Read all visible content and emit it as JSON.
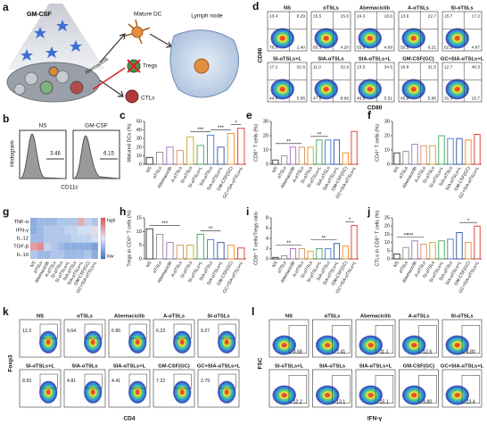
{
  "schematic": {
    "letter": "a",
    "gm_csf": "GM-CSF",
    "mature_dc": "Mature DC",
    "lymph_node": "Lymph node",
    "abemaciclib": "Abemaciclib",
    "tregs": "Tregs",
    "ctls": "CTLs"
  },
  "histograms": {
    "letter": "b",
    "y_label": "Histogram",
    "x_label": "CD11c",
    "plots": [
      {
        "title": "NS",
        "gate": "3.46"
      },
      {
        "title": "GM-CSF",
        "gate": "6.15"
      }
    ]
  },
  "flow_d": {
    "letter": "d",
    "y_label": "CD86",
    "x_label": "CD80",
    "plots": [
      {
        "title": "NS",
        "quadrants": [
          "13.4",
          "8.29",
          "76.0",
          "2.40"
        ]
      },
      {
        "title": "αTSLs",
        "quadrants": [
          "15.5",
          "15.0",
          "65.3",
          "4.20"
        ]
      },
      {
        "title": "Abemaciclib",
        "quadrants": [
          "24.3",
          "18.0",
          "53.6",
          "4.09"
        ]
      },
      {
        "title": "A-αTSLs",
        "quadrants": [
          "13.6",
          "22.7",
          "55.5",
          "8.21"
        ]
      },
      {
        "title": "SI-αTSLs",
        "quadrants": [
          "15.7",
          "17.2",
          "62.2",
          "4.87"
        ]
      },
      {
        "title": "SI-αTSLs+L",
        "quadrants": [
          "17.1",
          "32.6",
          "44.4",
          "5.85"
        ]
      },
      {
        "title": "SIA-αTSLs",
        "quadrants": [
          "11.0",
          "32.9",
          "47.5",
          "8.66"
        ]
      },
      {
        "title": "SIA-αTSLs+L",
        "quadrants": [
          "13.5",
          "34.5",
          "46.5",
          "5.51"
        ]
      },
      {
        "title": "GM-CSF(GC)",
        "quadrants": [
          "16.8",
          "31.5",
          "45.9",
          "5.86"
        ]
      },
      {
        "title": "GC+SIA-αTSLs+L",
        "quadrants": [
          "12.7",
          "40.3",
          "31.3",
          "15.7"
        ]
      }
    ]
  },
  "flow_k": {
    "letter": "k",
    "y_label": "Foxp3",
    "x_label": "CD4",
    "plots": [
      {
        "title": "NS",
        "gate": "12.3"
      },
      {
        "title": "αTSLs",
        "gate": "9.64"
      },
      {
        "title": "Abemaciclib",
        "gate": "6.85"
      },
      {
        "title": "A-αTSLs",
        "gate": "6.23"
      },
      {
        "title": "SI-αTSLs",
        "gate": "9.27"
      },
      {
        "title": "SI-αTSLs+L",
        "gate": "8.93"
      },
      {
        "title": "SIA-αTSLs",
        "gate": "4.81"
      },
      {
        "title": "SIA-αTSLs+L",
        "gate": "4.41"
      },
      {
        "title": "GM-CSF(GC)",
        "gate": "7.22"
      },
      {
        "title": "GC+SIA-αTSLs+L",
        "gate": "2.79"
      }
    ]
  },
  "flow_l": {
    "letter": "l",
    "y_label": "FSC",
    "x_label": "IFN-γ",
    "plots": [
      {
        "title": "NS",
        "gate": "3.58"
      },
      {
        "title": "αTSLs",
        "gate": "7.41"
      },
      {
        "title": "Abemaciclib",
        "gate": "11.1"
      },
      {
        "title": "A-αTSLs",
        "gate": "12.6"
      },
      {
        "title": "SI-αTSLs",
        "gate": "8.80"
      },
      {
        "title": "SI-αTSLs+L",
        "gate": "12.2"
      },
      {
        "title": "SIA-αTSLs",
        "gate": "13.1"
      },
      {
        "title": "SIA-αTSLs+L",
        "gate": "15.1"
      },
      {
        "title": "GM-CSF(GC)",
        "gate": "9.80"
      },
      {
        "title": "GC+SIA-αTSLs+L",
        "gate": "23.4"
      }
    ]
  },
  "chart_data": [
    {
      "type": "bar",
      "letter": "c",
      "y_label": "Matured DCs (%)",
      "categories": [
        "NS",
        "αTSLs",
        "Abemaciclib",
        "A-αTSLs",
        "SI-αTSLs",
        "SI-αTSLs+L",
        "SIA-αTSLs",
        "SIA-αTSLs+L",
        "GM-CSF(GC)",
        "GC+SIA-αTSLs+L"
      ],
      "values": [
        8,
        14,
        20,
        16,
        32,
        22,
        34,
        20,
        36,
        42
      ],
      "colors": [
        "#333333",
        "#8c8c8c",
        "#9b6fc1",
        "#d98c5f",
        "#c9a227",
        "#3aa655",
        "#4a78c8",
        "#2b4fa0",
        "#f08a24",
        "#e0312b"
      ],
      "ylim": [
        0,
        50
      ],
      "yticks": [
        0,
        10,
        20,
        30,
        40,
        50
      ],
      "annotations": [
        {
          "label": "***",
          "between": [
            "SI-αTSLs",
            "SIA-αTSLs"
          ]
        },
        {
          "label": "***",
          "between": [
            "SIA-αTSLs",
            "GM-CSF(GC)"
          ]
        },
        {
          "label": "*",
          "between": [
            "GM-CSF(GC)",
            "GC+SIA-αTSLs+L"
          ]
        }
      ]
    },
    {
      "type": "bar",
      "letter": "e",
      "y_label": "CD8⁺ T cells (%)",
      "categories": [
        "NS",
        "αTSLs",
        "Abemaciclib",
        "A-αTSLs",
        "SI-αTSLs",
        "SI-αTSLs+L",
        "SIA-αTSLs",
        "SIA-αTSLs+L",
        "GM-CSF(GC)",
        "GC+SIA-αTSLs+L"
      ],
      "values": [
        3,
        6,
        12,
        12,
        12,
        17,
        17,
        17,
        8,
        23
      ],
      "colors": [
        "#333333",
        "#8c8c8c",
        "#9b6fc1",
        "#d98c5f",
        "#c9a227",
        "#3aa655",
        "#4a78c8",
        "#2b4fa0",
        "#f08a24",
        "#e0312b"
      ],
      "ylim": [
        0,
        30
      ],
      "yticks": [
        0,
        10,
        20,
        30
      ],
      "annotations": [
        {
          "label": "**",
          "between": [
            "NS",
            "A-αTSLs"
          ]
        },
        {
          "label": "**",
          "between": [
            "SI-αTSLs",
            "SIA-αTSLs"
          ]
        }
      ]
    },
    {
      "type": "bar",
      "letter": "f",
      "y_label": "CD4⁺ T cells (%)",
      "categories": [
        "NS",
        "αTSLs",
        "Abemaciclib",
        "A-αTSLs",
        "SI-αTSLs",
        "SI-αTSLs+L",
        "SIA-αTSLs",
        "SIA-αTSLs+L",
        "GM-CSF(GC)",
        "GC+SIA-αTSLs+L"
      ],
      "values": [
        8,
        9,
        14,
        13,
        13,
        20,
        18,
        18,
        17,
        21
      ],
      "colors": [
        "#333333",
        "#8c8c8c",
        "#9b6fc1",
        "#d98c5f",
        "#c9a227",
        "#3aa655",
        "#4a78c8",
        "#2b4fa0",
        "#f08a24",
        "#e0312b"
      ],
      "ylim": [
        0,
        30
      ],
      "yticks": [
        0,
        10,
        20,
        30
      ],
      "annotations": []
    },
    {
      "type": "heatmap",
      "letter": "g",
      "rows": [
        "TNF-α",
        "IFN-γ",
        "IL-12",
        "TGF-β",
        "IL-10"
      ],
      "categories": [
        "NS",
        "αTSLs",
        "Abemaciclib",
        "A-αTSLs",
        "SI-αTSLs",
        "SI-αTSLs+L",
        "SIA-αTSLs",
        "SIA-αTSLs+L",
        "GM-CSF(GC)",
        "GC+SIA-αTSLs+L"
      ],
      "values": [
        [
          -0.5,
          -0.4,
          -0.4,
          -0.4,
          -0.3,
          -0.3,
          -0.3,
          0.4,
          -0.2,
          -0.3
        ],
        [
          -0.5,
          -0.4,
          -0.3,
          -0.3,
          -0.3,
          -0.2,
          -0.2,
          -0.1,
          -0.1,
          0.1
        ],
        [
          -0.4,
          -0.4,
          -0.3,
          -0.3,
          -0.3,
          -0.3,
          -0.2,
          -0.2,
          -0.2,
          -0.1
        ],
        [
          0.5,
          0.6,
          -0.2,
          -0.3,
          -0.4,
          -0.5,
          -0.5,
          -0.5,
          -0.5,
          -0.6
        ],
        [
          -0.3,
          -0.4,
          -0.4,
          -0.3,
          -0.3,
          -0.4,
          -0.4,
          -0.4,
          -0.3,
          -0.5
        ]
      ],
      "vlim": [
        -1,
        1
      ],
      "scale_high": "high",
      "scale_low": "low"
    },
    {
      "type": "bar",
      "letter": "h",
      "y_label": "Tregs in CD4⁺ T cells (%)",
      "categories": [
        "NS",
        "αTSLs",
        "Abemaciclib",
        "A-αTSLs",
        "SI-αTSLs",
        "SI-αTSLs+L",
        "SIA-αTSLs",
        "SIA-αTSLs+L",
        "GM-CSF(GC)",
        "GC+SIA-αTSLs+L"
      ],
      "values": [
        11,
        9,
        6,
        5,
        5,
        9,
        7,
        6,
        5,
        4
      ],
      "colors": [
        "#333333",
        "#8c8c8c",
        "#9b6fc1",
        "#d98c5f",
        "#c9a227",
        "#3aa655",
        "#4a78c8",
        "#2b4fa0",
        "#f08a24",
        "#e0312b"
      ],
      "ylim": [
        0,
        15
      ],
      "yticks": [
        0,
        5,
        10,
        15
      ],
      "annotations": [
        {
          "label": "***",
          "between": [
            "NS",
            "A-αTSLs"
          ]
        },
        {
          "label": "**",
          "between": [
            "SI-αTSLs+L",
            "SIA-αTSLs+L"
          ]
        }
      ]
    },
    {
      "type": "bar",
      "letter": "i",
      "y_label": "CD8⁺ T cells/Tregs ratio",
      "categories": [
        "NS",
        "αTSLs",
        "Abemaciclib",
        "A-αTSLs",
        "SI-αTSLs",
        "SI-αTSLs+L",
        "SIA-αTSLs",
        "SIA-αTSLs+L",
        "GM-CSF(GC)",
        "GC+SIA-αTSLs+L"
      ],
      "values": [
        0.3,
        0.6,
        2,
        2,
        1.5,
        2,
        2,
        3,
        2.5,
        6.5
      ],
      "colors": [
        "#333333",
        "#8c8c8c",
        "#9b6fc1",
        "#d98c5f",
        "#c9a227",
        "#3aa655",
        "#4a78c8",
        "#2b4fa0",
        "#f08a24",
        "#e0312b"
      ],
      "ylim": [
        0,
        8
      ],
      "yticks": [
        0,
        2,
        4,
        6,
        8
      ],
      "annotations": [
        {
          "label": "**",
          "between": [
            "NS",
            "A-αTSLs"
          ]
        },
        {
          "label": "**",
          "between": [
            "SI-αTSLs",
            "SIA-αTSLs+L"
          ]
        },
        {
          "label": "*",
          "between": [
            "GM-CSF(GC)",
            "GC+SIA-αTSLs+L"
          ]
        }
      ]
    },
    {
      "type": "bar",
      "letter": "j",
      "y_label": "CTLs in CD8⁺ T cells (%)",
      "categories": [
        "NS",
        "αTSLs",
        "Abemaciclib",
        "A-αTSLs",
        "SI-αTSLs",
        "SI-αTSLs+L",
        "SIA-αTSLs",
        "SIA-αTSLs+L",
        "GM-CSF(GC)",
        "GC+SIA-αTSLs+L"
      ],
      "values": [
        3,
        7,
        11,
        9,
        10,
        11,
        12,
        16,
        10,
        20
      ],
      "colors": [
        "#333333",
        "#8c8c8c",
        "#9b6fc1",
        "#d98c5f",
        "#c9a227",
        "#3aa655",
        "#4a78c8",
        "#2b4fa0",
        "#f08a24",
        "#e0312b"
      ],
      "ylim": [
        0,
        25
      ],
      "yticks": [
        0,
        5,
        10,
        15,
        20,
        25
      ],
      "annotations": [
        {
          "label": "**",
          "between": [
            "NS",
            "Abemaciclib"
          ]
        },
        {
          "label": "***",
          "between": [
            "NS",
            "A-αTSLs"
          ]
        },
        {
          "label": "*",
          "between": [
            "SIA-αTSLs+L",
            "GC+SIA-αTSLs+L"
          ]
        }
      ]
    }
  ]
}
